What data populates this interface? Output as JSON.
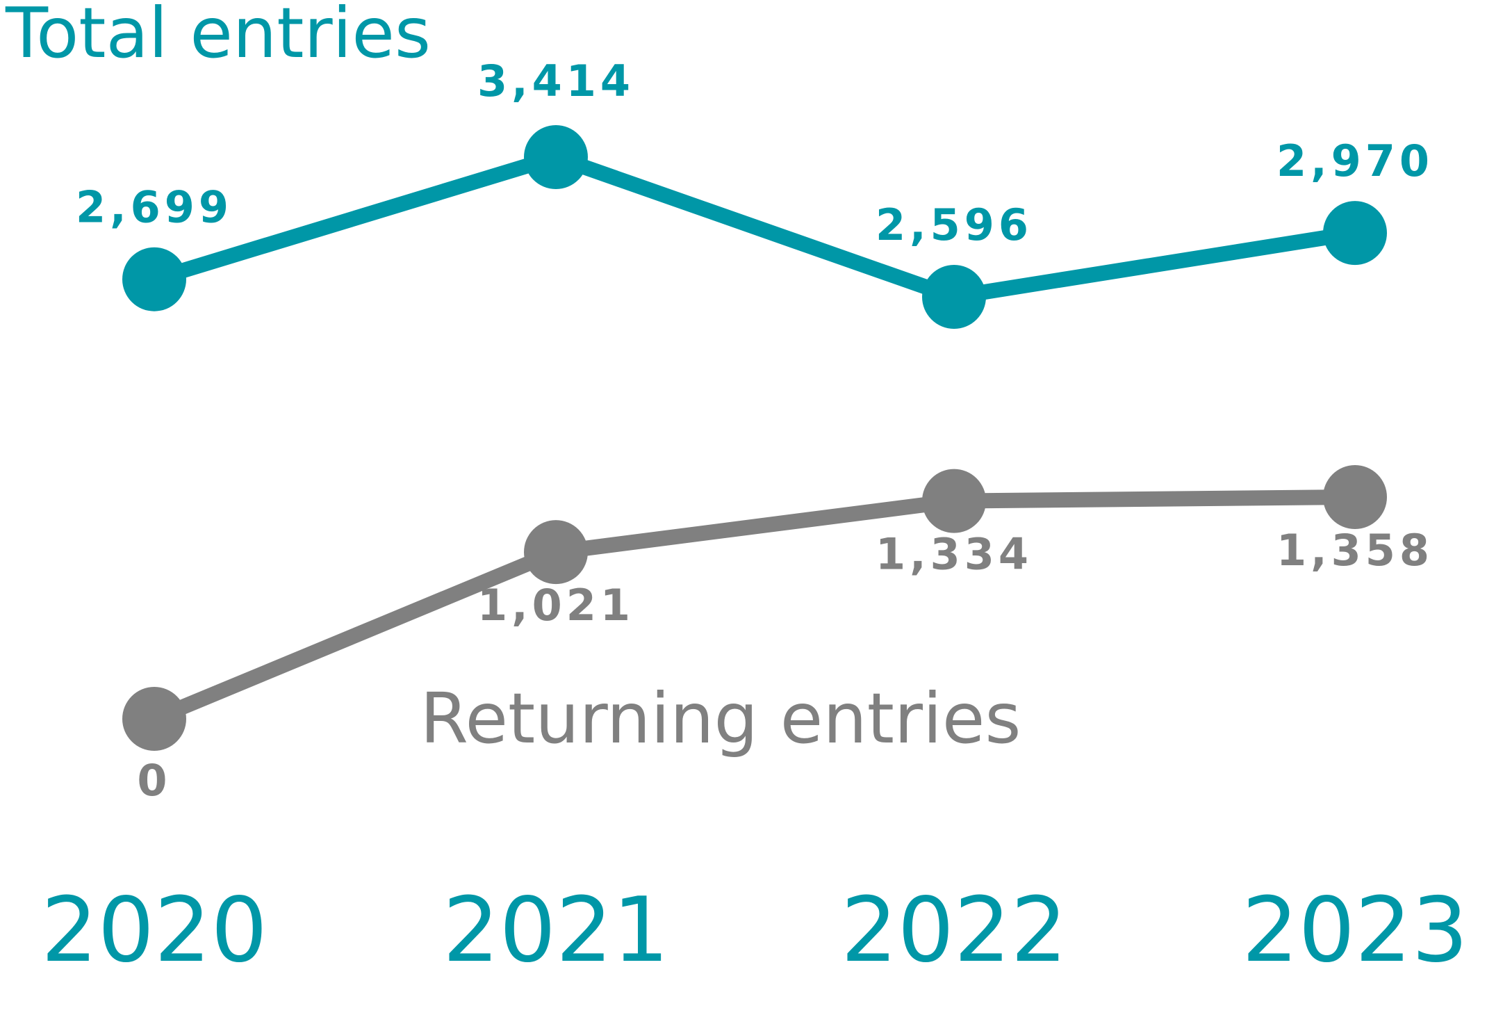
{
  "chart_data": {
    "type": "line",
    "categories": [
      "2020",
      "2021",
      "2022",
      "2023"
    ],
    "series": [
      {
        "name": "Total entries",
        "values": [
          2699,
          3414,
          2596,
          2970
        ],
        "value_labels": [
          "2,699",
          "3,414",
          "2,596",
          "2,970"
        ],
        "color": "#0097A7"
      },
      {
        "name": "Returning entries",
        "values": [
          0,
          1021,
          1334,
          1358
        ],
        "value_labels": [
          "0",
          "1,021",
          "1,334",
          "1,358"
        ],
        "color": "#808080"
      }
    ],
    "grid": false,
    "legend": "inline labels",
    "axis_color": "#0097A7"
  }
}
